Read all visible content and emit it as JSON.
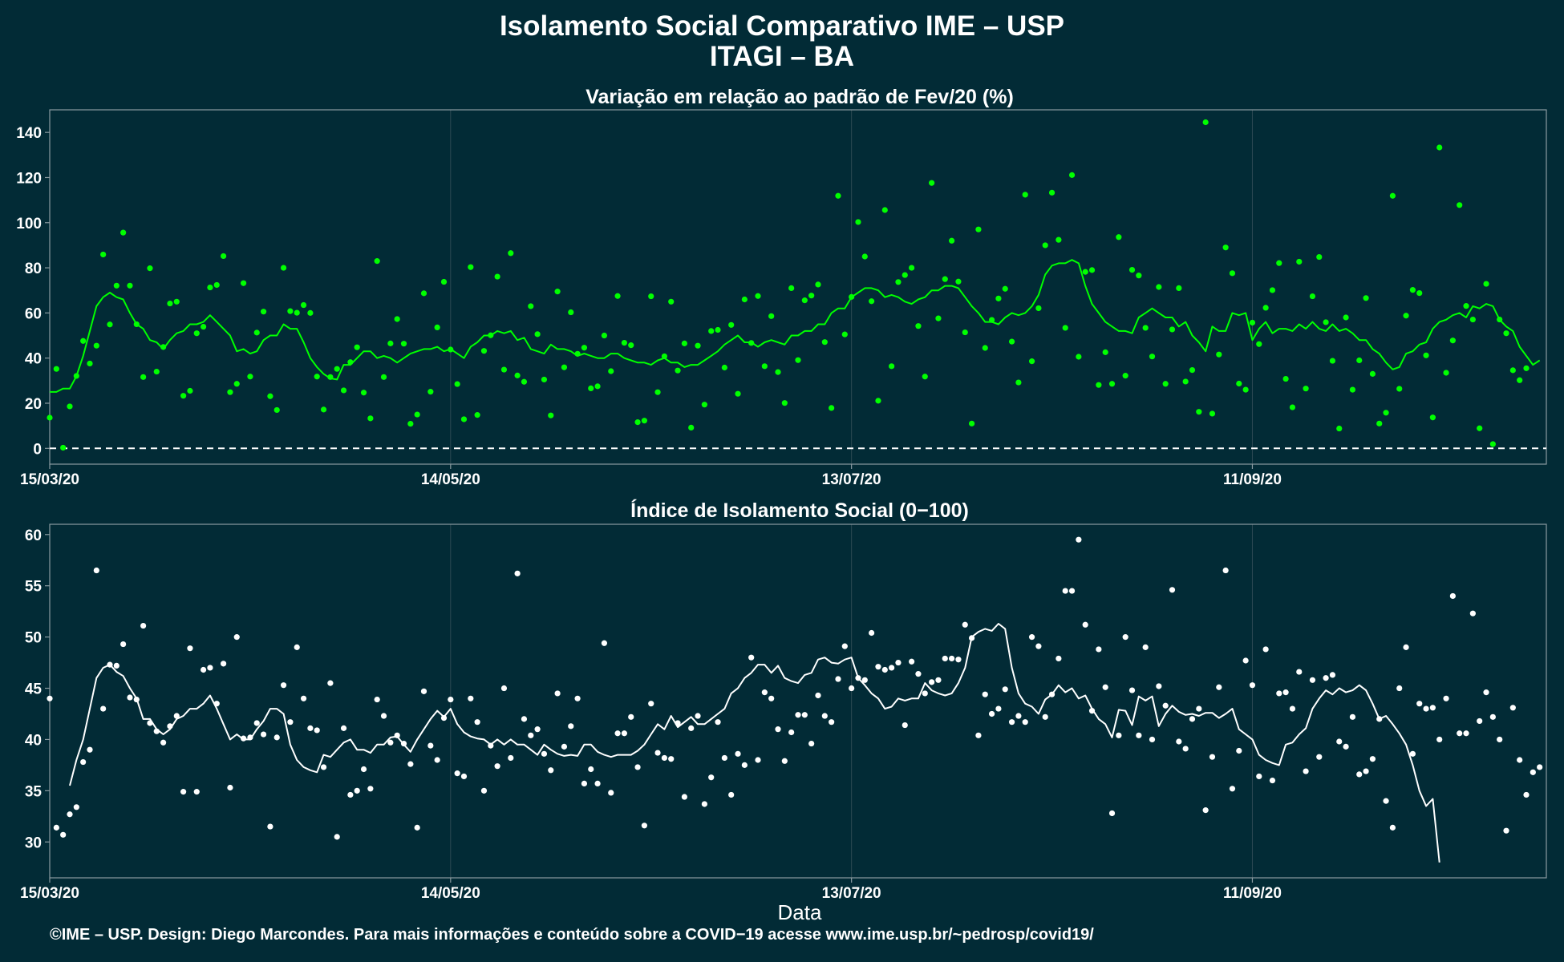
{
  "page": {
    "title": "Isolamento Social Comparativo IME – USP",
    "subtitle": "ITAGI – BA",
    "footer": "©IME – USP. Design: Diego Marcondes. Para mais informações e conteúdo sobre a COVID−19 acesse www.ime.usp.br/~pedrosp/covid19/",
    "xlabel": "Data"
  },
  "colors": {
    "background": "#022b36",
    "panel_border": "#8a9aa0",
    "grid": "#2d4a53",
    "green": "#00ff00",
    "white": "#ffffff"
  },
  "chart_data": [
    {
      "type": "scatter",
      "title": "Variação em relação ao padrão de Fev/20 (%)",
      "x_ticks": [
        "15/03/20",
        "14/05/20",
        "13/07/20",
        "11/09/20"
      ],
      "x_tick_days": [
        0,
        60,
        120,
        180
      ],
      "xlim": [
        0,
        224
      ],
      "ylim": [
        -7,
        150
      ],
      "y_ticks": [
        0,
        20,
        40,
        60,
        80,
        100,
        120,
        140
      ],
      "reference_line": 0,
      "series": [
        {
          "kind": "points",
          "x_start_day": 0,
          "values": [
            13.6,
            35.2,
            0.3,
            18.6,
            32.1,
            47.6,
            37.6,
            45.5,
            85.9,
            54.9,
            72.1,
            95.6,
            72.1,
            55.0,
            31.6,
            79.8,
            34.0,
            44.9,
            64.2,
            65.0,
            23.3,
            25.5,
            51.0,
            53.9,
            71.3,
            72.4,
            85.2,
            24.9,
            28.6,
            73.2,
            31.8,
            51.3,
            60.6,
            23.1,
            17.0,
            80.0,
            60.8,
            60.1,
            63.5,
            60.0,
            31.8,
            17.2,
            31.6,
            35.2,
            25.7,
            38.2,
            44.8,
            24.7,
            13.3,
            83.0,
            31.6,
            46.5,
            57.3,
            46.4,
            10.9,
            15.0,
            68.7,
            25.1,
            53.6,
            73.8,
            43.8,
            28.5,
            12.9,
            80.3,
            14.8,
            43.2,
            50.1,
            76.1,
            34.9,
            86.5,
            32.3,
            29.5,
            63.0,
            50.6,
            30.5,
            14.6,
            69.5,
            35.9,
            60.3,
            41.9,
            44.6,
            26.6,
            27.5,
            50.0,
            34.2,
            67.5,
            46.8,
            45.7,
            11.6,
            12.3,
            67.4,
            24.9,
            40.8,
            65.0,
            34.5,
            46.5,
            9.2,
            45.5,
            19.4,
            52.0,
            52.5,
            35.8,
            54.7,
            24.2,
            66.0,
            46.7,
            67.5,
            36.4,
            58.6,
            33.8,
            20.1,
            71.0,
            39.1,
            65.6,
            67.7,
            72.6,
            47.1,
            17.9,
            111.9,
            50.5,
            67.1,
            100.3,
            85.0,
            65.2,
            21.1,
            105.6,
            36.4,
            73.7,
            76.8,
            80.0,
            54.2,
            31.8,
            117.6,
            57.6,
            75.0,
            92.0,
            73.9,
            51.4,
            11.0,
            97.0,
            44.5,
            56.9,
            66.4,
            70.7,
            47.3,
            29.2,
            112.4,
            38.6,
            62.1,
            90.0,
            113.3,
            92.4,
            53.4,
            121.1,
            40.6,
            78.2,
            79.0,
            28.1,
            42.6,
            28.6,
            93.6,
            32.2,
            79.1,
            76.6,
            53.4,
            40.7,
            71.5,
            28.6,
            52.7,
            71.0,
            29.6,
            34.7,
            16.2,
            144.5,
            15.4,
            41.6,
            89.0,
            77.6,
            28.7,
            26.0,
            55.7,
            46.2,
            62.3,
            70.1,
            82.1,
            30.8,
            18.2,
            82.7,
            26.5,
            67.4,
            84.8,
            55.9,
            38.8,
            8.8,
            58.0,
            26.0,
            39.0,
            66.6,
            33.0,
            11.0,
            15.8,
            111.9,
            26.4,
            58.8,
            70.2,
            68.8,
            41.2,
            13.7,
            133.3,
            33.5,
            47.8,
            107.8,
            63.1,
            57.1,
            8.9,
            72.9,
            1.9,
            57.1,
            51.0,
            34.6,
            30.2,
            35.5
          ]
        },
        {
          "kind": "line",
          "x_start_day": 0,
          "values": [
            25.0,
            25.0,
            26.5,
            26.5,
            32.0,
            41.0,
            52.0,
            63.0,
            67.0,
            69.0,
            67.0,
            66.0,
            60.0,
            55.0,
            53.0,
            48.0,
            47.0,
            44.0,
            48.0,
            51.0,
            52.0,
            55.0,
            55.0,
            56.0,
            59.0,
            56.0,
            53.0,
            50.0,
            43.0,
            44.0,
            42.0,
            43.0,
            48.0,
            50.0,
            50.0,
            55.0,
            53.0,
            53.0,
            47.0,
            40.0,
            36.0,
            33.0,
            31.0,
            30.5,
            37.0,
            37.0,
            40.0,
            43.0,
            43.0,
            40.0,
            41.0,
            40.0,
            38.0,
            40.0,
            42.0,
            43.0,
            44.0,
            44.0,
            45.0,
            43.0,
            44.0,
            42.0,
            40.0,
            45.0,
            47.0,
            50.0,
            50.0,
            52.0,
            51.0,
            52.0,
            48.0,
            49.0,
            44.0,
            43.0,
            42.0,
            46.0,
            44.0,
            44.0,
            43.0,
            41.0,
            42.0,
            41.0,
            40.0,
            40.0,
            42.0,
            42.0,
            40.0,
            39.0,
            38.0,
            38.0,
            37.0,
            39.0,
            40.0,
            38.0,
            38.0,
            36.0,
            37.0,
            37.0,
            39.0,
            41.0,
            43.0,
            46.0,
            48.0,
            50.0,
            47.0,
            47.0,
            45.0,
            47.0,
            48.0,
            47.0,
            46.0,
            50.0,
            50.0,
            52.0,
            52.0,
            55.0,
            55.0,
            60.0,
            62.0,
            62.0,
            67.0,
            69.0,
            71.0,
            71.0,
            70.0,
            67.0,
            68.0,
            67.0,
            65.0,
            64.0,
            66.0,
            67.0,
            70.0,
            70.0,
            72.0,
            72.0,
            71.0,
            67.0,
            63.0,
            60.0,
            56.0,
            56.0,
            55.0,
            58.0,
            60.0,
            59.0,
            60.0,
            63.0,
            68.0,
            77.0,
            81.0,
            82.0,
            82.0,
            83.5,
            82.0,
            72.0,
            64.0,
            60.0,
            56.0,
            54.0,
            52.0,
            52.0,
            51.0,
            58.0,
            60.0,
            62.0,
            60.0,
            58.0,
            58.0,
            54.0,
            56.0,
            50.0,
            47.0,
            43.0,
            54.0,
            52.0,
            52.0,
            60.0,
            59.0,
            60.0,
            48.0,
            53.0,
            56.0,
            51.0,
            53.0,
            53.0,
            52.0,
            55.0,
            53.0,
            56.0,
            53.0,
            52.0,
            55.0,
            52.0,
            53.0,
            51.0,
            48.0,
            48.0,
            44.0,
            42.0,
            38.0,
            35.0,
            36.0,
            42.0,
            43.0,
            46.0,
            47.0,
            53.0,
            56.0,
            57.0,
            59.0,
            60.0,
            58.0,
            63.0,
            62.0,
            64.0,
            63.0,
            57.0,
            54.0,
            52.0,
            45.0,
            41.0,
            37.0,
            39.0
          ]
        }
      ]
    },
    {
      "type": "scatter",
      "title": "Índice de Isolamento Social (0−100)",
      "x_ticks": [
        "15/03/20",
        "14/05/20",
        "13/07/20",
        "11/09/20"
      ],
      "x_tick_days": [
        0,
        60,
        120,
        180
      ],
      "xlim": [
        0,
        224
      ],
      "ylim": [
        26.5,
        61
      ],
      "y_ticks": [
        30,
        35,
        40,
        45,
        50,
        55,
        60
      ],
      "series": [
        {
          "kind": "points",
          "x_start_day": 0,
          "values": [
            44.0,
            31.4,
            30.7,
            32.7,
            33.4,
            37.8,
            39.0,
            56.5,
            43.0,
            47.3,
            47.2,
            49.3,
            44.1,
            43.9,
            51.1,
            41.6,
            40.8,
            39.7,
            41.3,
            42.3,
            34.9,
            48.9,
            34.9,
            46.8,
            47.0,
            43.5,
            47.4,
            35.3,
            50.0,
            40.1,
            40.2,
            41.6,
            40.5,
            31.5,
            40.2,
            45.3,
            41.7,
            49.0,
            44.0,
            41.1,
            40.9,
            37.3,
            45.5,
            30.5,
            41.1,
            34.6,
            35.0,
            37.1,
            35.2,
            43.9,
            42.3,
            39.7,
            40.4,
            39.6,
            37.6,
            31.4,
            44.7,
            39.4,
            38.0,
            42.1,
            43.9,
            36.7,
            36.4,
            44.0,
            41.7,
            35.0,
            39.4,
            37.4,
            45.0,
            38.2,
            56.2,
            42.0,
            40.4,
            41.0,
            38.6,
            37.0,
            44.5,
            39.3,
            41.3,
            44.0,
            35.7,
            37.1,
            35.7,
            49.4,
            34.8,
            40.6,
            40.6,
            42.2,
            37.3,
            31.6,
            43.5,
            38.7,
            38.2,
            38.1,
            41.6,
            34.4,
            41.1,
            42.3,
            33.7,
            36.3,
            41.7,
            38.2,
            34.6,
            38.6,
            37.5,
            48.0,
            38.0,
            44.6,
            44.0,
            41.0,
            37.9,
            40.7,
            42.4,
            42.4,
            39.6,
            44.3,
            42.3,
            41.7,
            45.9,
            49.1,
            45.0,
            46.0,
            45.8,
            50.4,
            47.1,
            46.8,
            47.0,
            47.5,
            41.4,
            47.6,
            46.4,
            44.5,
            45.6,
            45.8,
            47.9,
            47.9,
            47.8,
            51.2,
            49.9,
            40.4,
            44.4,
            42.5,
            43.0,
            44.9,
            41.7,
            42.3,
            41.7,
            50.0,
            49.1,
            42.2,
            44.4,
            47.9,
            54.5,
            54.5,
            59.5,
            51.2,
            42.8,
            48.8,
            45.1,
            32.8,
            40.4,
            50.0,
            44.8,
            40.4,
            49.0,
            40.0,
            45.2,
            43.3,
            54.6,
            39.8,
            39.1,
            42.0,
            43.0,
            33.1,
            38.3,
            45.1,
            56.5,
            35.2,
            38.9,
            47.7,
            45.3,
            36.4,
            48.8,
            36.0,
            44.5,
            44.6,
            43.0,
            46.6,
            36.9,
            45.8,
            38.3,
            46.0,
            46.3,
            39.8,
            39.3,
            42.2,
            36.6,
            36.9,
            38.1,
            42.0,
            34.0,
            31.4,
            45.0,
            49.0,
            38.6,
            43.5,
            43.0,
            43.1,
            40.0,
            44.0,
            54.0,
            40.6,
            40.6,
            52.3,
            41.8,
            44.6,
            42.2,
            40.0,
            31.1,
            43.1,
            38.0,
            34.6,
            36.8,
            37.3
          ]
        },
        {
          "kind": "line",
          "x_start_day": 3,
          "values": [
            35.5,
            38.0,
            40.0,
            43.0,
            46.0,
            47.0,
            47.3,
            46.6,
            46.2,
            45.0,
            44.0,
            42.0,
            42.0,
            41.0,
            40.5,
            41.0,
            42.0,
            42.3,
            43.0,
            43.0,
            43.5,
            44.3,
            43.0,
            41.5,
            40.0,
            40.5,
            40.0,
            40.0,
            41.0,
            41.8,
            43.0,
            43.0,
            42.5,
            39.5,
            38.0,
            37.3,
            37.0,
            36.8,
            38.5,
            38.3,
            39.0,
            39.7,
            40.0,
            39.0,
            39.0,
            38.7,
            39.5,
            39.5,
            40.2,
            40.3,
            39.5,
            38.8,
            40.0,
            41.0,
            42.0,
            42.8,
            42.2,
            43.0,
            41.5,
            40.7,
            40.3,
            40.1,
            40.0,
            39.5,
            40.0,
            39.5,
            40.0,
            39.5,
            39.5,
            39.0,
            38.5,
            39.5,
            39.0,
            38.6,
            38.4,
            38.5,
            38.4,
            39.5,
            39.5,
            38.8,
            38.5,
            38.3,
            38.5,
            38.5,
            38.5,
            38.9,
            39.5,
            40.5,
            41.5,
            41.0,
            42.3,
            41.2,
            41.7,
            42.2,
            41.5,
            41.5,
            42.0,
            42.5,
            43.0,
            44.5,
            45.0,
            46.0,
            46.5,
            47.3,
            47.3,
            46.5,
            47.2,
            46.0,
            45.7,
            45.5,
            46.3,
            46.5,
            47.8,
            48.0,
            47.5,
            47.4,
            47.8,
            48.0,
            46.0,
            45.3,
            44.5,
            44.0,
            43.0,
            43.2,
            44.0,
            43.8,
            44.0,
            44.0,
            45.5,
            44.8,
            44.5,
            44.3,
            44.5,
            45.5,
            47.0,
            50.0,
            50.5,
            50.8,
            50.6,
            51.3,
            50.8,
            47.0,
            44.5,
            43.5,
            43.2,
            42.5,
            43.9,
            44.4,
            45.3,
            44.6,
            45.0,
            44.0,
            44.3,
            43.0,
            42.0,
            41.5,
            40.2,
            42.9,
            42.8,
            41.4,
            44.2,
            43.8,
            44.2,
            41.3,
            42.5,
            43.3,
            42.7,
            42.4,
            42.5,
            42.3,
            42.6,
            42.6,
            42.1,
            42.5,
            43.0,
            41.0,
            40.5,
            40.0,
            38.5,
            38.0,
            37.7,
            37.5,
            39.5,
            39.7,
            40.5,
            41.1,
            43.0,
            44.0,
            44.8,
            44.4,
            45.0,
            44.6,
            44.8,
            45.3,
            44.8,
            43.5,
            42.0,
            42.3,
            41.5,
            40.6,
            39.5,
            37.5,
            35.0,
            33.5,
            34.2,
            28.0
          ]
        }
      ]
    }
  ]
}
